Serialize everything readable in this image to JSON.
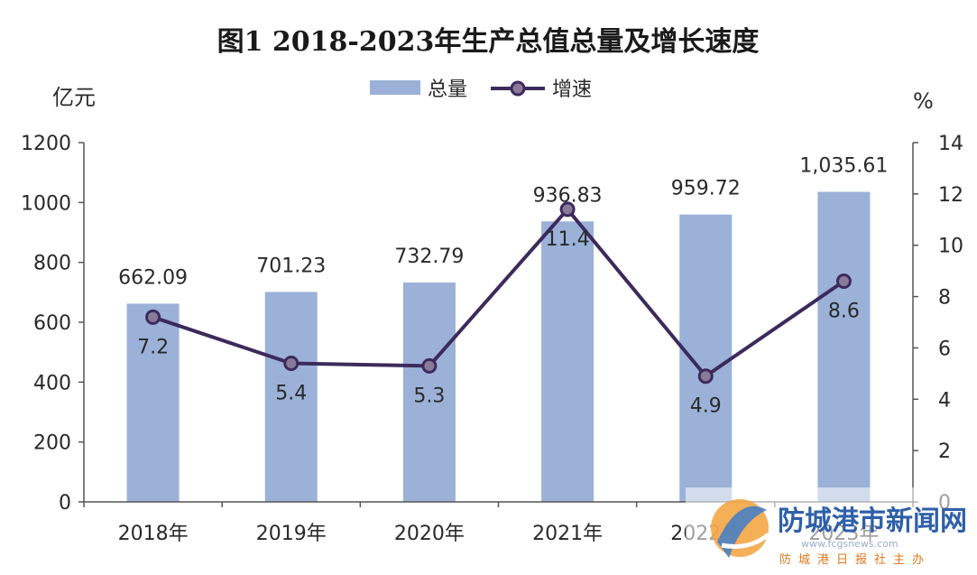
{
  "chart_data": {
    "type": "bar",
    "title": "图1 2018-2023年生产总值总量及增长速度",
    "categories": [
      "2018年",
      "2019年",
      "2020年",
      "2021年",
      "2022年",
      "2023年"
    ],
    "left_axis": {
      "unit": "亿元",
      "min": 0,
      "max": 1200,
      "ticks": [
        0,
        200,
        400,
        600,
        800,
        1000,
        1200
      ]
    },
    "right_axis": {
      "unit": "%",
      "min": 0,
      "max": 14,
      "ticks": [
        0,
        2,
        4,
        6,
        8,
        10,
        12,
        14
      ]
    },
    "series": [
      {
        "name": "总量",
        "type": "bar",
        "axis": "left",
        "color": "#9bb1d8",
        "values": [
          662.09,
          701.23,
          732.79,
          936.83,
          959.72,
          1035.61
        ],
        "labels": [
          "662.09",
          "701.23",
          "732.79",
          "936.83",
          "959.72",
          "1,035.61"
        ]
      },
      {
        "name": "增速",
        "type": "line",
        "axis": "right",
        "color": "#3d2a5c",
        "marker_color": "#8a7a9a",
        "values": [
          7.2,
          5.4,
          5.3,
          11.4,
          4.9,
          8.6
        ],
        "labels": [
          "7.2",
          "5.4",
          "5.3",
          "11.4",
          "4.9",
          "8.6"
        ]
      }
    ],
    "legend": "top-center",
    "grid": false
  },
  "watermark": {
    "title": "防城港市新闻网",
    "subtitle": "防城港日报社主办",
    "url": "www.fcgsnews.com"
  }
}
